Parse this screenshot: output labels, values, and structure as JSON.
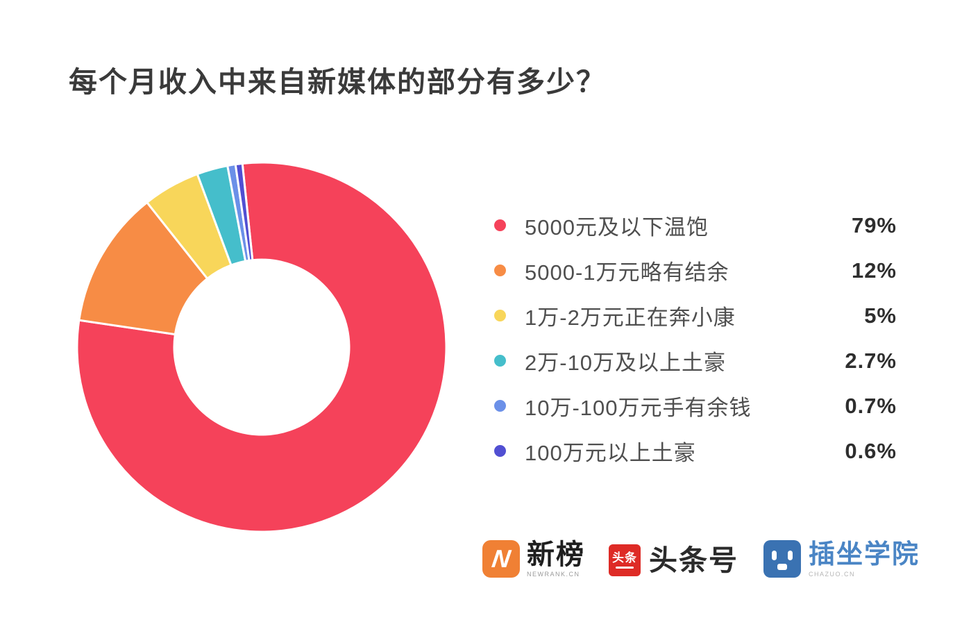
{
  "title": {
    "text": "每个月收入中来自新媒体的部分有多少？"
  },
  "chart_data": {
    "type": "pie",
    "variant": "donut",
    "title": "每个月收入中来自新媒体的部分有多少？",
    "direction": "clockwise",
    "start_angle_deg": -6,
    "outer_radius_px": 266,
    "inner_radius_px": 126,
    "slice_gap_color": "#ffffff",
    "legend_position": "right",
    "categories": [
      "5000元及以下温饱",
      "5000-1万元略有结余",
      "1万-2万元正在奔小康",
      "2万-10万及以上土豪",
      "10万-100万元手有余钱",
      "100万元以上土豪"
    ],
    "values": [
      79,
      12,
      5,
      2.7,
      0.7,
      0.6
    ],
    "slices": [
      {
        "label": "5000元及以下温饱",
        "pct": 79,
        "display": "79%",
        "color": "#f5425a"
      },
      {
        "label": "5000-1万元略有结余",
        "pct": 12,
        "display": "12%",
        "color": "#f78c45"
      },
      {
        "label": "1万-2万元正在奔小康",
        "pct": 5,
        "display": "5%",
        "color": "#f8d65a"
      },
      {
        "label": "2万-10万及以上土豪",
        "pct": 2.7,
        "display": "2.7%",
        "color": "#45becb"
      },
      {
        "label": "10万-100万元手有余钱",
        "pct": 0.7,
        "display": "0.7%",
        "color": "#6b90e8"
      },
      {
        "label": "100万元以上土豪",
        "pct": 0.6,
        "display": "0.6%",
        "color": "#514fd2"
      }
    ]
  },
  "footer": {
    "logos": [
      {
        "name": "newrank",
        "text": "新榜",
        "subtext": "NEWRANK.CN",
        "icon": "N",
        "badge_color": "#f08034"
      },
      {
        "name": "toutiao",
        "text": "头条号",
        "badge_text": "头条",
        "badge_color": "#de2b26"
      },
      {
        "name": "chazuo",
        "text": "插坐学院",
        "subtext": "CHAZUO.CN",
        "badge_color": "#3a72b2"
      }
    ]
  }
}
